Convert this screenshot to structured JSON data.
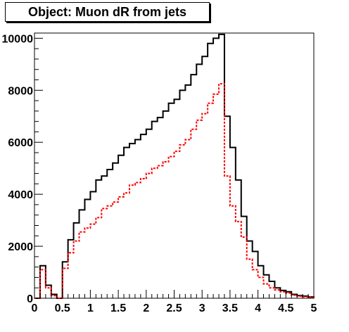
{
  "chart_data": {
    "type": "histogram",
    "title": "Object: Muon dR from jets",
    "xlabel": "",
    "ylabel": "",
    "xlim": [
      0,
      5
    ],
    "ylim": [
      0,
      10200
    ],
    "grid": false,
    "bin_width": 0.1,
    "bin_edges_start": 0.0,
    "x_ticks": [
      "0",
      "0.5",
      "1",
      "1.5",
      "2",
      "2.5",
      "3",
      "3.5",
      "4",
      "4.5",
      "5"
    ],
    "x_tick_values": [
      0,
      0.5,
      1,
      1.5,
      2,
      2.5,
      3,
      3.5,
      4,
      4.5,
      5
    ],
    "y_ticks": [
      "0",
      "2000",
      "4000",
      "6000",
      "8000",
      "10000"
    ],
    "y_tick_values": [
      0,
      2000,
      4000,
      6000,
      8000,
      10000
    ],
    "series": [
      {
        "color": "#000000",
        "style": "solid",
        "values": [
          0,
          1250,
          500,
          150,
          0,
          1400,
          2250,
          2900,
          3400,
          3800,
          4100,
          4550,
          4700,
          4950,
          5200,
          5500,
          5800,
          5950,
          6100,
          6300,
          6500,
          6800,
          6950,
          7200,
          7500,
          7650,
          8000,
          8200,
          8600,
          9000,
          9300,
          9800,
          10000,
          10150,
          7000,
          5800,
          4550,
          3150,
          2200,
          1800,
          1250,
          900,
          650,
          400,
          300,
          250,
          150,
          100,
          80,
          50
        ]
      },
      {
        "color": "#ff0000",
        "style": "dashed",
        "values": [
          0,
          1100,
          400,
          100,
          0,
          1150,
          1750,
          2200,
          2550,
          2700,
          2850,
          3100,
          3450,
          3550,
          3700,
          3900,
          4050,
          4350,
          4450,
          4600,
          4800,
          5000,
          5100,
          5250,
          5450,
          5650,
          5900,
          6100,
          6500,
          6850,
          7100,
          7500,
          7850,
          8250,
          4700,
          3550,
          2950,
          2350,
          1500,
          1100,
          800,
          550,
          400,
          320,
          250,
          200,
          120,
          80,
          60,
          40
        ]
      }
    ]
  }
}
